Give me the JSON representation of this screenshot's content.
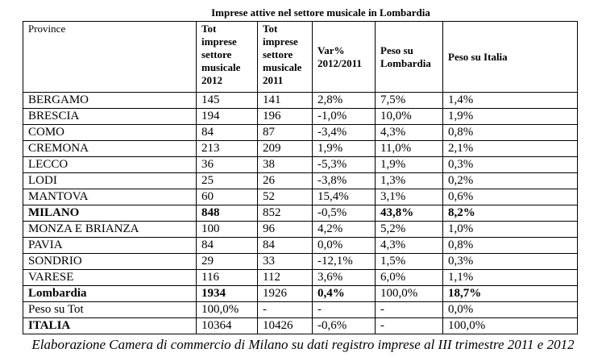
{
  "title": "Imprese attive nel settore musicale in Lombardia",
  "table": {
    "header": [
      "Province",
      "Tot imprese settore musicale 2012",
      "Tot imprese settore musicale 2011",
      "Var% 2012/2011",
      "Peso su Lombardia",
      "Peso su Italia"
    ],
    "rows": [
      [
        "BERGAMO",
        "145",
        "141",
        "2,8%",
        "7,5%",
        "1,4%"
      ],
      [
        "BRESCIA",
        "194",
        "196",
        "-1,0%",
        "10,0%",
        "1,9%"
      ],
      [
        "COMO",
        "84",
        "87",
        "-3,4%",
        "4,3%",
        "0,8%"
      ],
      [
        "CREMONA",
        "213",
        "209",
        "1,9%",
        "11,0%",
        "2,1%"
      ],
      [
        "LECCO",
        "36",
        "38",
        "-5,3%",
        "1,9%",
        "0,3%"
      ],
      [
        "LODI",
        "25",
        "26",
        "-3,8%",
        "1,3%",
        "0,2%"
      ],
      [
        "MANTOVA",
        "60",
        "52",
        "15,4%",
        "3,1%",
        "0,6%"
      ],
      [
        "MILANO",
        "848",
        "852",
        "-0,5%",
        "43,8%",
        "8,2%"
      ],
      [
        "MONZA E BRIANZA",
        "100",
        "96",
        "4,2%",
        "5,2%",
        "1,0%"
      ],
      [
        "PAVIA",
        "84",
        "84",
        "0,0%",
        "4,3%",
        "0,8%"
      ],
      [
        "SONDRIO",
        "29",
        "33",
        "-12,1%",
        "1,5%",
        "0,3%"
      ],
      [
        "VARESE",
        "116",
        "112",
        "3,6%",
        "6,0%",
        "1,1%"
      ],
      [
        "Lombardia",
        "1934",
        "1926",
        "0,4%",
        "100,0%",
        "18,7%"
      ],
      [
        "Peso su Tot",
        "100,0%",
        "-",
        "-",
        "-",
        "0,0%"
      ],
      [
        "ITALIA",
        "10364",
        "10426",
        "-0,6%",
        "-",
        "100,0%"
      ]
    ]
  },
  "caption": "Elaborazione Camera di commercio di Milano su dati registro imprese al III trimestre 2011 e 2012"
}
